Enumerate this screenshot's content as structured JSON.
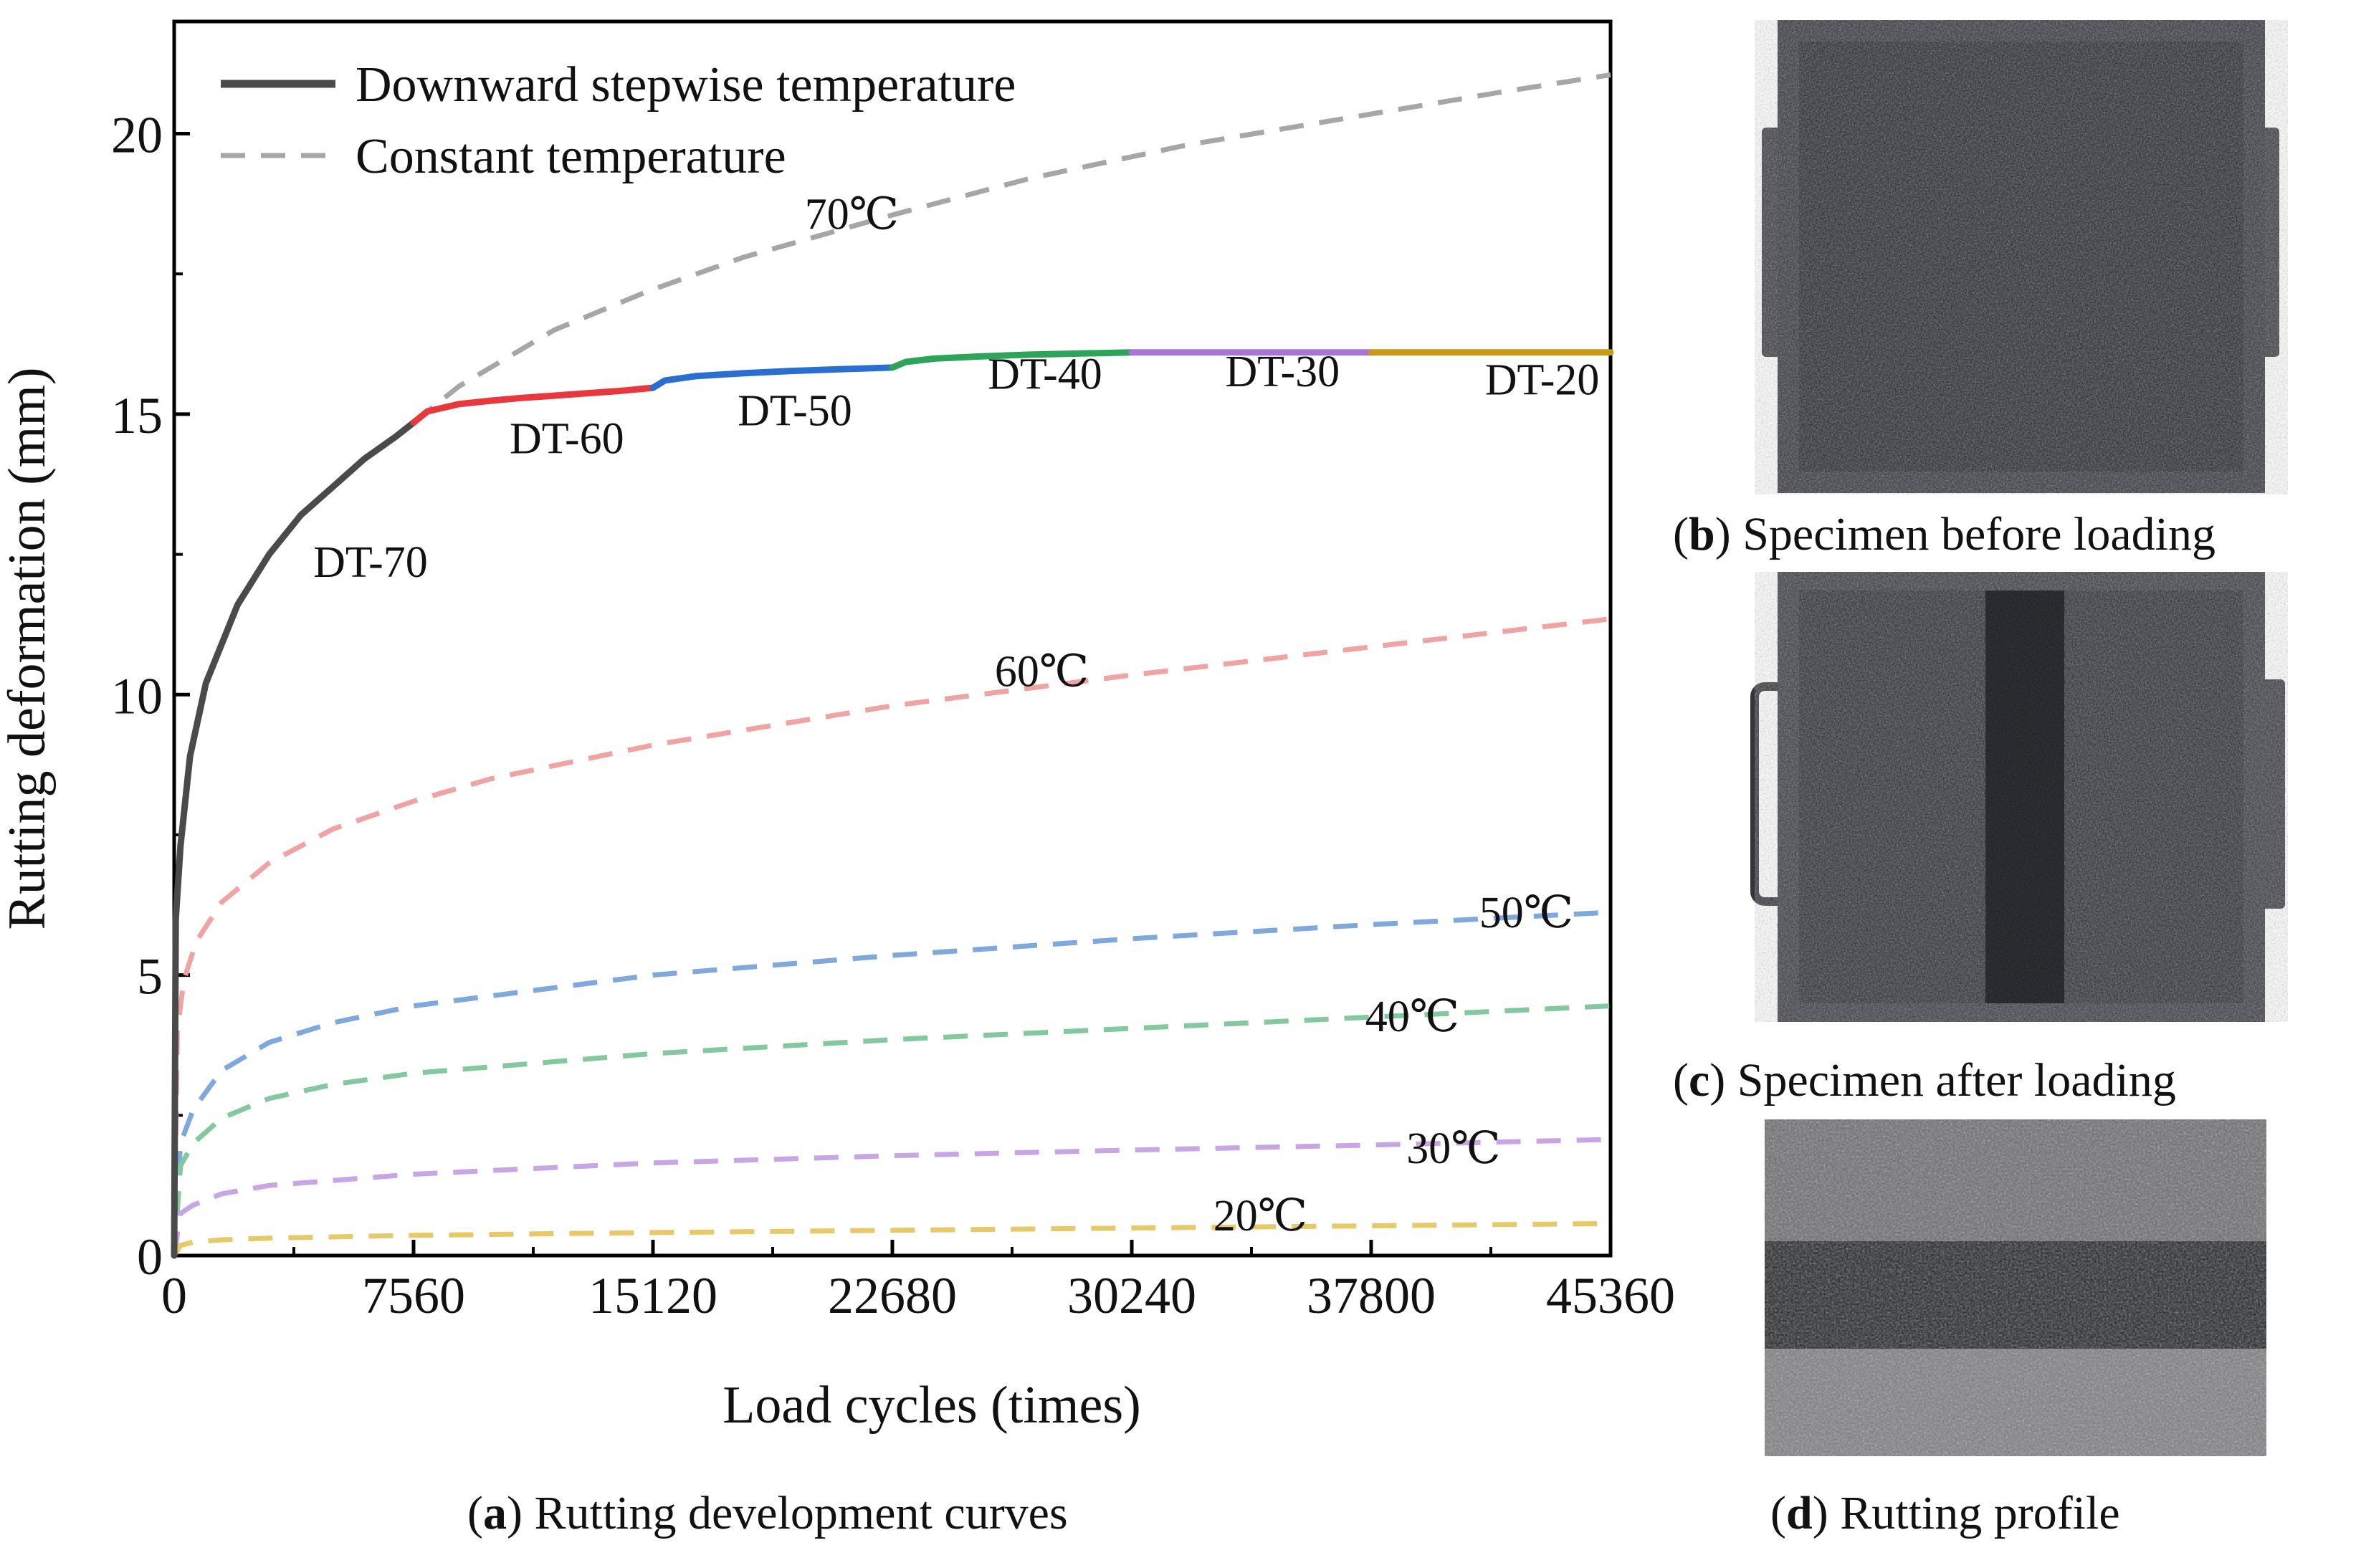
{
  "chart_data": {
    "type": "line",
    "xlabel": "Load cycles (times)",
    "ylabel": "Rutting deformation (mm)",
    "xlim": [
      0,
      45360
    ],
    "ylim": [
      0,
      22
    ],
    "xticks": [
      0,
      7560,
      15120,
      22680,
      30240,
      37800,
      45360
    ],
    "yticks": [
      0,
      5,
      10,
      15,
      20
    ],
    "legend_position": "top-left",
    "legend": [
      {
        "label": "Downward stepwise temperature",
        "style": "solid",
        "color": "#4a4a4a"
      },
      {
        "label": "Constant temperature",
        "style": "dashed",
        "color": "#a6a6a6"
      }
    ],
    "stepwise_segments": [
      {
        "name": "DT-70",
        "color": "#4a4a4a",
        "x": [
          0,
          50,
          200,
          500,
          1000,
          2000,
          3000,
          4000,
          5000,
          6000,
          7000,
          7560
        ],
        "y": [
          0,
          6.0,
          7.3,
          8.9,
          10.2,
          11.6,
          12.5,
          13.2,
          13.7,
          14.2,
          14.6,
          14.85
        ]
      },
      {
        "name": "DT-60",
        "color": "#e8383d",
        "x": [
          7560,
          8000,
          9000,
          10000,
          11000,
          12000,
          13000,
          14000,
          15120
        ],
        "y": [
          14.85,
          15.05,
          15.18,
          15.24,
          15.29,
          15.33,
          15.37,
          15.41,
          15.47
        ]
      },
      {
        "name": "DT-50",
        "color": "#2a6fd0",
        "x": [
          15120,
          15500,
          16500,
          18000,
          19500,
          21000,
          22680
        ],
        "y": [
          15.47,
          15.6,
          15.68,
          15.73,
          15.77,
          15.8,
          15.83
        ]
      },
      {
        "name": "DT-40",
        "color": "#2ea35a",
        "x": [
          22680,
          23100,
          24000,
          25500,
          27000,
          28500,
          30240
        ],
        "y": [
          15.83,
          15.93,
          15.99,
          16.03,
          16.06,
          16.08,
          16.1
        ]
      },
      {
        "name": "DT-30",
        "color": "#a874d8",
        "x": [
          30240,
          37800
        ],
        "y": [
          16.1,
          16.1
        ]
      },
      {
        "name": "DT-20",
        "color": "#c99a1a",
        "x": [
          37800,
          45360
        ],
        "y": [
          16.1,
          16.1
        ]
      }
    ],
    "constant_series": [
      {
        "name": "70℃",
        "color": "#a6a6a6",
        "x": [
          7560,
          9000,
          12000,
          15000,
          18000,
          22680,
          27000,
          32000,
          37800,
          42000,
          45360
        ],
        "y": [
          14.85,
          15.5,
          16.5,
          17.2,
          17.8,
          18.55,
          19.2,
          19.8,
          20.35,
          20.75,
          21.05
        ]
      },
      {
        "name": "60℃",
        "color": "#f0a3a3",
        "x": [
          0,
          100,
          300,
          700,
          1500,
          3000,
          5000,
          7560,
          10000,
          15120,
          22680,
          30240,
          37800,
          45360
        ],
        "y": [
          0,
          4.0,
          4.9,
          5.6,
          6.3,
          7.0,
          7.6,
          8.1,
          8.5,
          9.1,
          9.8,
          10.35,
          10.85,
          11.35
        ]
      },
      {
        "name": "50℃",
        "color": "#7fa8dc",
        "x": [
          0,
          200,
          600,
          1500,
          3000,
          5000,
          7560,
          15120,
          22680,
          30240,
          37800,
          45360
        ],
        "y": [
          0,
          2.0,
          2.6,
          3.3,
          3.8,
          4.15,
          4.45,
          5.0,
          5.35,
          5.65,
          5.9,
          6.12
        ]
      },
      {
        "name": "40℃",
        "color": "#84c8a0",
        "x": [
          0,
          200,
          600,
          1500,
          3000,
          5000,
          7560,
          15120,
          22680,
          30240,
          37800,
          45360
        ],
        "y": [
          0,
          1.6,
          2.0,
          2.45,
          2.8,
          3.05,
          3.25,
          3.6,
          3.85,
          4.05,
          4.25,
          4.45
        ]
      },
      {
        "name": "30℃",
        "color": "#c8a6e6",
        "x": [
          0,
          200,
          600,
          1500,
          3000,
          7560,
          15120,
          22680,
          30240,
          37800,
          45360
        ],
        "y": [
          0,
          0.75,
          0.9,
          1.1,
          1.25,
          1.45,
          1.65,
          1.78,
          1.88,
          1.97,
          2.07
        ]
      },
      {
        "name": "20℃",
        "color": "#e8c96a",
        "x": [
          0,
          200,
          600,
          1500,
          3000,
          7560,
          15120,
          22680,
          30240,
          37800,
          45360
        ],
        "y": [
          0,
          0.18,
          0.24,
          0.28,
          0.31,
          0.36,
          0.41,
          0.45,
          0.49,
          0.53,
          0.57
        ]
      }
    ],
    "annotations": [
      {
        "text": "DT-70",
        "x": 6200,
        "y": 12.1
      },
      {
        "text": "DT-60",
        "x": 12400,
        "y": 14.3
      },
      {
        "text": "DT-50",
        "x": 19600,
        "y": 14.8
      },
      {
        "text": "DT-40",
        "x": 27500,
        "y": 15.45
      },
      {
        "text": "DT-30",
        "x": 35000,
        "y": 15.5
      },
      {
        "text": "DT-20",
        "x": 43200,
        "y": 15.35
      },
      {
        "text": "70℃",
        "x": 21400,
        "y": 18.3
      },
      {
        "text": "60℃",
        "x": 27400,
        "y": 10.15
      },
      {
        "text": "50℃",
        "x": 42700,
        "y": 5.85
      },
      {
        "text": "40℃",
        "x": 39100,
        "y": 4.0
      },
      {
        "text": "30℃",
        "x": 40400,
        "y": 1.65
      },
      {
        "text": "20℃",
        "x": 34300,
        "y": 0.45
      }
    ]
  },
  "captions": {
    "a": {
      "letter": "a",
      "text": " Rutting development curves"
    },
    "b": {
      "letter": "b",
      "text": " Specimen before loading"
    },
    "c": {
      "letter": "c",
      "text": " Specimen after loading"
    },
    "d": {
      "letter": "d",
      "text": " Rutting profile"
    }
  }
}
